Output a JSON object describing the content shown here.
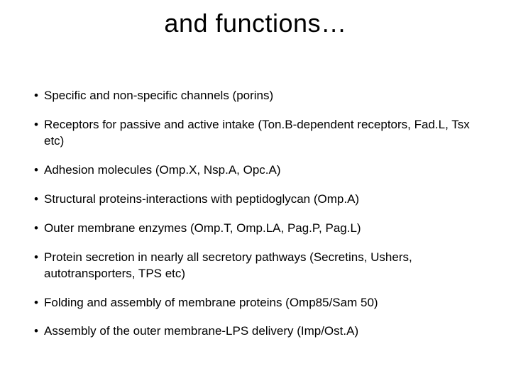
{
  "title": "and functions…",
  "bullets": [
    "Specific and non-specific channels (porins)",
    "Receptors for passive and active intake (Ton.B-dependent receptors, Fad.L, Tsx etc)",
    "Adhesion molecules (Omp.X, Nsp.A, Opc.A)",
    "Structural proteins-interactions with peptidoglycan (Omp.A)",
    "Outer membrane enzymes (Omp.T, Omp.LA, Pag.P, Pag.L)",
    "Protein secretion in nearly all secretory pathways (Secretins, Ushers, autotransporters, TPS etc)",
    "Folding and assembly of membrane proteins (Omp85/Sam 50)",
    "Assembly of the outer membrane-LPS delivery (Imp/Ost.A)"
  ]
}
